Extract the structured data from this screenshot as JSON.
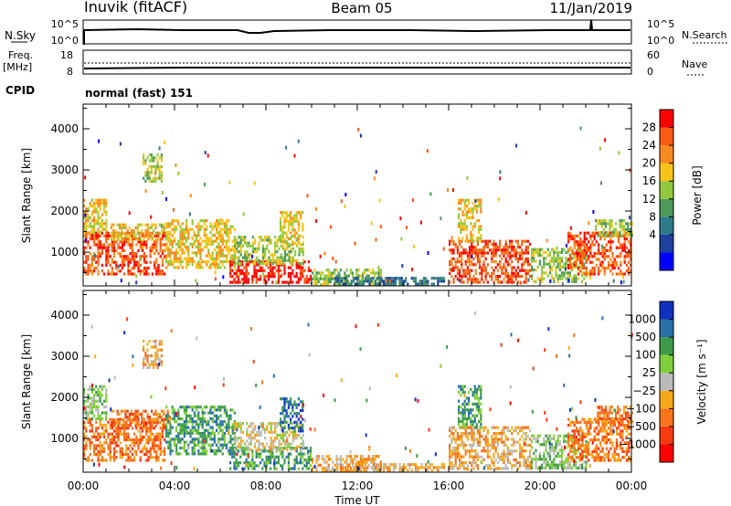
{
  "header": {
    "station": "Inuvik (fitACF)",
    "beam": "Beam 05",
    "date": "11/Jan/2019"
  },
  "summary_panels": {
    "nsky_label": "N.Sky",
    "nsky_ticks": [
      "10^5",
      "10^0"
    ],
    "nsearch_label": "N.Search",
    "nsearch_ticks": [
      "10^5",
      "10^0"
    ],
    "freq_label": "Freq.",
    "freq_unit": "[MHz]",
    "freq_ticks": [
      "18",
      "8"
    ],
    "nave_label": "Nave",
    "nave_ticks": [
      "60",
      "0"
    ],
    "cpid_label": "CPID",
    "cpid_value": "normal (fast) 151"
  },
  "chart_data": [
    {
      "type": "heatmap",
      "name": "power",
      "xlabel": "",
      "ylabel": "Slant Range [km]",
      "x_ticks": [
        "00:00",
        "04:00",
        "08:00",
        "12:00",
        "16:00",
        "20:00",
        "00:00"
      ],
      "y_ticks": [
        "1000",
        "2000",
        "3000",
        "4000"
      ],
      "ylim": [
        180,
        4600
      ],
      "xlim_hours": [
        0,
        24
      ],
      "colorbar": {
        "label": "Power [dB]",
        "ticks": [
          "28",
          "24",
          "20",
          "16",
          "12",
          "8",
          "4"
        ],
        "colors": [
          "#0000ff",
          "#1d3f9e",
          "#2e7a8c",
          "#4a9a5a",
          "#92c83e",
          "#f7c31a",
          "#f78a1c",
          "#f75a12",
          "#ff0000"
        ]
      },
      "echo_regions": [
        {
          "t0": 0.0,
          "t1": 3.6,
          "r0": 500,
          "r1": 1500,
          "level": 7
        },
        {
          "t0": 0.0,
          "t1": 1.0,
          "r0": 1500,
          "r1": 2300,
          "level": 5
        },
        {
          "t0": 1.2,
          "t1": 3.8,
          "r0": 1300,
          "r1": 1700,
          "level": 5
        },
        {
          "t0": 2.6,
          "t1": 3.4,
          "r0": 2700,
          "r1": 3400,
          "level": 4
        },
        {
          "t0": 3.6,
          "t1": 6.6,
          "r0": 600,
          "r1": 1800,
          "level": 5
        },
        {
          "t0": 6.4,
          "t1": 10.0,
          "r0": 250,
          "r1": 800,
          "level": 8
        },
        {
          "t0": 6.6,
          "t1": 9.6,
          "r0": 700,
          "r1": 1400,
          "level": 4
        },
        {
          "t0": 8.6,
          "t1": 9.6,
          "r0": 1200,
          "r1": 2000,
          "level": 5
        },
        {
          "t0": 10.0,
          "t1": 13.0,
          "r0": 200,
          "r1": 600,
          "level": 4
        },
        {
          "t0": 11.0,
          "t1": 15.8,
          "r0": 200,
          "r1": 400,
          "level": 2
        },
        {
          "t0": 16.0,
          "t1": 19.6,
          "r0": 300,
          "r1": 1300,
          "level": 7
        },
        {
          "t0": 16.4,
          "t1": 17.4,
          "r0": 1300,
          "r1": 2300,
          "level": 5
        },
        {
          "t0": 19.6,
          "t1": 22.0,
          "r0": 300,
          "r1": 1100,
          "level": 4
        },
        {
          "t0": 21.2,
          "t1": 24.0,
          "r0": 500,
          "r1": 1500,
          "level": 7
        },
        {
          "t0": 22.4,
          "t1": 24.0,
          "r0": 1400,
          "r1": 1800,
          "level": 4
        }
      ]
    },
    {
      "type": "heatmap",
      "name": "velocity",
      "xlabel": "Time UT",
      "ylabel": "Slant Range [km]",
      "x_ticks": [
        "00:00",
        "04:00",
        "08:00",
        "12:00",
        "16:00",
        "20:00",
        "00:00"
      ],
      "y_ticks": [
        "1000",
        "2000",
        "3000",
        "4000"
      ],
      "ylim": [
        180,
        4600
      ],
      "xlim_hours": [
        0,
        24
      ],
      "colorbar": {
        "label": "Velocity [m s⁻¹]",
        "ticks": [
          "1000",
          "500",
          "100",
          "25",
          "−25",
          "−100",
          "−500",
          "−1000"
        ],
        "colors": [
          "#ff0000",
          "#f73a12",
          "#f7731c",
          "#f7a81a",
          "#bbbbbb",
          "#7fcf3a",
          "#3d9a4a",
          "#2b6fa8",
          "#1030c0"
        ]
      },
      "echo_regions": [
        {
          "t0": 0.0,
          "t1": 3.6,
          "r0": 500,
          "r1": 1500,
          "level": 2
        },
        {
          "t0": 0.0,
          "t1": 1.0,
          "r0": 1500,
          "r1": 2300,
          "level": 5
        },
        {
          "t0": 1.2,
          "t1": 3.8,
          "r0": 1300,
          "r1": 1700,
          "level": 2
        },
        {
          "t0": 2.6,
          "t1": 3.4,
          "r0": 2700,
          "r1": 3400,
          "level": 3
        },
        {
          "t0": 3.6,
          "t1": 6.6,
          "r0": 600,
          "r1": 1800,
          "level": 6
        },
        {
          "t0": 6.4,
          "t1": 10.0,
          "r0": 250,
          "r1": 800,
          "level": 6
        },
        {
          "t0": 6.6,
          "t1": 9.6,
          "r0": 700,
          "r1": 1400,
          "level": 4
        },
        {
          "t0": 8.6,
          "t1": 9.6,
          "r0": 1200,
          "r1": 2000,
          "level": 7
        },
        {
          "t0": 10.0,
          "t1": 13.0,
          "r0": 200,
          "r1": 600,
          "level": 3
        },
        {
          "t0": 11.0,
          "t1": 15.8,
          "r0": 200,
          "r1": 400,
          "level": 3
        },
        {
          "t0": 16.0,
          "t1": 19.6,
          "r0": 300,
          "r1": 1300,
          "level": 3
        },
        {
          "t0": 16.4,
          "t1": 17.4,
          "r0": 1300,
          "r1": 2300,
          "level": 6
        },
        {
          "t0": 19.6,
          "t1": 22.0,
          "r0": 300,
          "r1": 1100,
          "level": 5
        },
        {
          "t0": 21.2,
          "t1": 24.0,
          "r0": 500,
          "r1": 1500,
          "level": 2
        },
        {
          "t0": 22.4,
          "t1": 24.0,
          "r0": 1400,
          "r1": 1800,
          "level": 2
        }
      ]
    }
  ]
}
